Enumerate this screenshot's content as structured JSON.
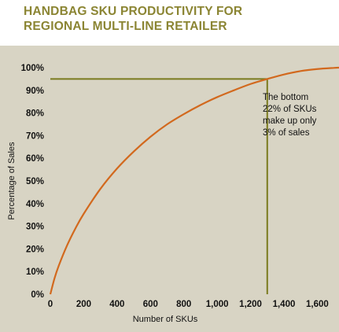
{
  "title_lines": [
    "HANDBAG SKU PRODUCTIVITY FOR",
    "REGIONAL MULTI-LINE RETAILER"
  ],
  "colors": {
    "background": "#d8d4c4",
    "header_bg": "#ffffff",
    "title": "#8b8533",
    "curve": "#d2691e",
    "reference_lines": "#7a7a1e"
  },
  "chart_data": {
    "type": "line",
    "title": "HANDBAG SKU PRODUCTIVITY FOR REGIONAL MULTI-LINE RETAILER",
    "xlabel": "Number of SKUs",
    "ylabel": "Percentage of Sales",
    "xlim": [
      0,
      1730
    ],
    "ylim": [
      0,
      100
    ],
    "x_ticks": [
      0,
      200,
      400,
      600,
      800,
      1000,
      1200,
      1400,
      1600
    ],
    "x_tick_labels": [
      "0",
      "200",
      "400",
      "600",
      "800",
      "1,000",
      "1,200",
      "1,400",
      "1,600"
    ],
    "y_ticks": [
      0,
      10,
      20,
      30,
      40,
      50,
      60,
      70,
      80,
      90,
      100
    ],
    "y_tick_labels": [
      "0%",
      "10%",
      "20%",
      "30%",
      "40%",
      "50%",
      "60%",
      "70%",
      "80%",
      "90%",
      "100%"
    ],
    "grid": false,
    "series": [
      {
        "x": [
          0,
          25,
          50,
          100,
          150,
          200,
          300,
          400,
          500,
          600,
          700,
          800,
          900,
          1000,
          1100,
          1200,
          1300,
          1400,
          1500,
          1600,
          1700,
          1730
        ],
        "values": [
          0,
          7,
          12.5,
          21.5,
          29,
          35.5,
          46.5,
          55.5,
          63,
          69.5,
          75,
          79.5,
          83.5,
          87,
          90,
          92.8,
          95,
          97,
          98.5,
          99.4,
          99.9,
          100
        ]
      }
    ],
    "reference_lines": {
      "x": 1300,
      "y": 95
    },
    "annotation": [
      "The bottom",
      "22% of SKUs",
      "make up only",
      "3% of sales"
    ]
  }
}
